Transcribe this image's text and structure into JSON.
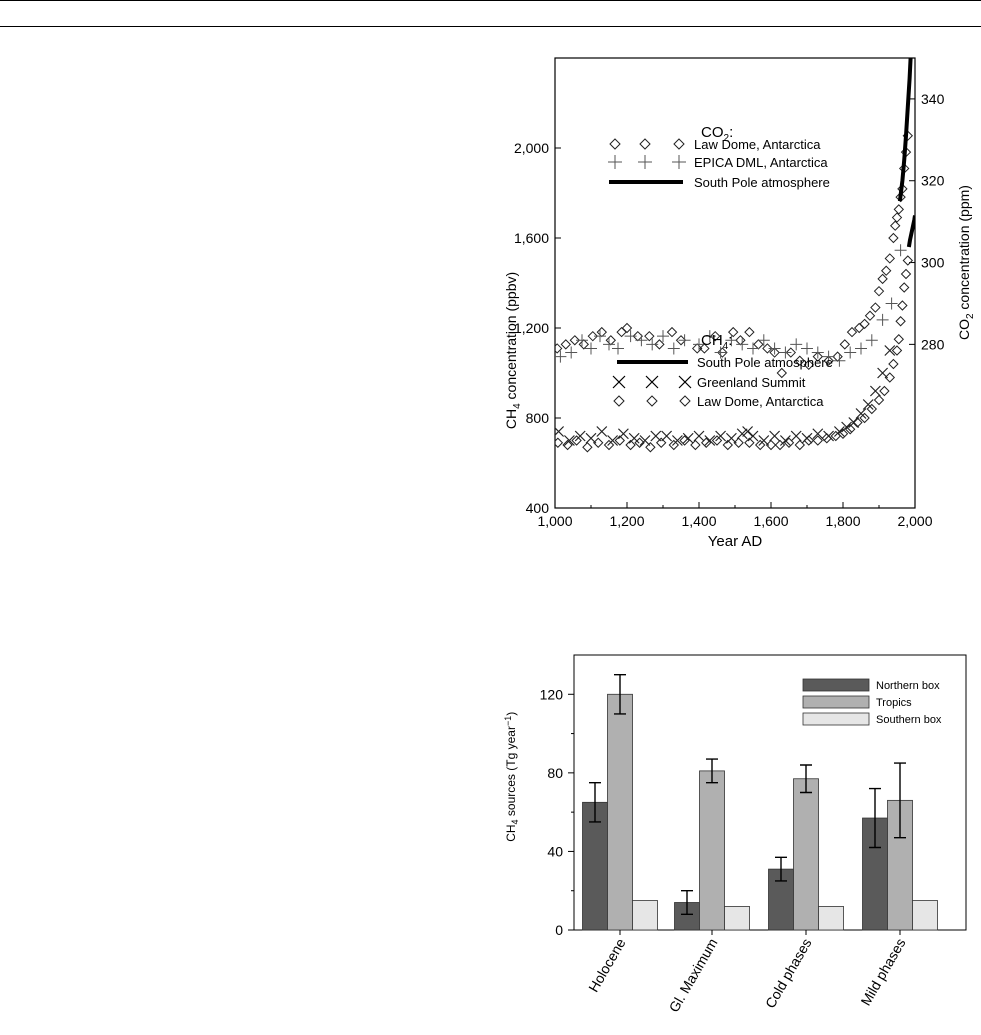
{
  "chart_data": [
    {
      "type": "scatter",
      "xlabel": "Year AD",
      "ylabel": "CH4 concentration (ppbv)",
      "ylabel_right": "CO2 concentration (ppm)",
      "xlim": [
        1000,
        2000
      ],
      "ylim": [
        400,
        2400
      ],
      "ylim_right": [
        240,
        350
      ],
      "x_ticks": [
        {
          "v": 1000,
          "label": "1,000"
        },
        {
          "v": 1200,
          "label": "1,200"
        },
        {
          "v": 1400,
          "label": "1,400"
        },
        {
          "v": 1600,
          "label": "1,600"
        },
        {
          "v": 1800,
          "label": "1,800"
        },
        {
          "v": 2000,
          "label": "2,000"
        }
      ],
      "y_ticks": [
        {
          "v": 400,
          "label": "400"
        },
        {
          "v": 800,
          "label": "800"
        },
        {
          "v": 1200,
          "label": "1,200"
        },
        {
          "v": 1600,
          "label": "1,600"
        },
        {
          "v": 2000,
          "label": "2,000"
        }
      ],
      "y2_ticks": [
        {
          "v": 280,
          "label": "280"
        },
        {
          "v": 300,
          "label": "300"
        },
        {
          "v": 320,
          "label": "320"
        },
        {
          "v": 340,
          "label": "340"
        }
      ],
      "co2_group": {
        "title": "CO",
        "title_sub": "2",
        "title_tail": ":",
        "series": [
          {
            "name": "Law Dome, Antarctica",
            "marker": "diamond",
            "x": [
              1006,
              1030,
              1055,
              1080,
              1105,
              1130,
              1155,
              1185,
              1200,
              1230,
              1262,
              1290,
              1325,
              1350,
              1395,
              1415,
              1445,
              1465,
              1495,
              1515,
              1540,
              1565,
              1590,
              1610,
              1630,
              1655,
              1680,
              1705,
              1730,
              1760,
              1785,
              1805,
              1825,
              1845,
              1860,
              1875,
              1890,
              1900,
              1910,
              1920,
              1930,
              1940,
              1945,
              1950,
              1955,
              1960,
              1965,
              1970,
              1975,
              1980
            ],
            "y": [
              279,
              280,
              281,
              280,
              282,
              283,
              281,
              283,
              284,
              282,
              282,
              280,
              283,
              281,
              279,
              279,
              282,
              278,
              283,
              281,
              283,
              280,
              279,
              278,
              273,
              278,
              276,
              275,
              277,
              276,
              277,
              280,
              283,
              284,
              285,
              287,
              289,
              293,
              296,
              298,
              301,
              306,
              309,
              311,
              313,
              316,
              318,
              323,
              327,
              331
            ]
          },
          {
            "name": "EPICA DML, Antarctica",
            "marker": "plus",
            "x": [
              1015,
              1045,
              1075,
              1100,
              1125,
              1150,
              1175,
              1210,
              1240,
              1270,
              1300,
              1330,
              1360,
              1400,
              1430,
              1460,
              1490,
              1520,
              1550,
              1580,
              1610,
              1640,
              1670,
              1700,
              1730,
              1760,
              1790,
              1820,
              1850,
              1880,
              1910,
              1935,
              1960
            ],
            "y": [
              277,
              278,
              281,
              279,
              282,
              280,
              279,
              282,
              281,
              280,
              282,
              279,
              281,
              280,
              282,
              278,
              281,
              280,
              279,
              281,
              279,
              278,
              280,
              279,
              278,
              277,
              276,
              278,
              279,
              281,
              286,
              290,
              303
            ]
          },
          {
            "name": "South Pole atmosphere",
            "marker": "line",
            "x": [
              1958,
              1965,
              1970,
              1975,
              1980,
              1985,
              1990,
              1995,
              2000
            ],
            "y": [
              315,
              320,
              325,
              331,
              338,
              345,
              354,
              360,
              369
            ]
          }
        ]
      },
      "ch4_group": {
        "title": "CH",
        "title_sub": "4",
        "title_tail": ":",
        "series": [
          {
            "name": "South Pole atmosphere",
            "marker": "line",
            "x": [
              1983,
              1986,
              1990,
              1994,
              1998,
              2000
            ],
            "y": [
              1560,
              1590,
              1620,
              1650,
              1680,
              1700
            ]
          },
          {
            "name": "Greenland Summit",
            "marker": "cross",
            "x": [
              1010,
              1040,
              1070,
              1100,
              1130,
              1160,
              1190,
              1220,
              1250,
              1280,
              1310,
              1340,
              1370,
              1400,
              1430,
              1460,
              1490,
              1520,
              1535,
              1550,
              1580,
              1610,
              1640,
              1670,
              1700,
              1730,
              1760,
              1790,
              1810,
              1830,
              1850,
              1870,
              1890,
              1910,
              1930
            ],
            "y": [
              740,
              700,
              720,
              710,
              740,
              700,
              730,
              710,
              700,
              720,
              720,
              700,
              710,
              720,
              700,
              720,
              710,
              730,
              740,
              720,
              700,
              720,
              700,
              720,
              710,
              730,
              720,
              740,
              760,
              780,
              820,
              860,
              920,
              1000,
              1100
            ]
          },
          {
            "name": "Law Dome, Antarctica",
            "marker": "diamond",
            "x": [
              1008,
              1035,
              1060,
              1090,
              1120,
              1150,
              1180,
              1210,
              1235,
              1265,
              1295,
              1330,
              1360,
              1390,
              1420,
              1450,
              1480,
              1510,
              1540,
              1570,
              1600,
              1625,
              1650,
              1680,
              1705,
              1730,
              1755,
              1780,
              1800,
              1820,
              1840,
              1860,
              1880,
              1900,
              1915,
              1930,
              1940,
              1950,
              1955,
              1960,
              1965,
              1970,
              1975,
              1980
            ],
            "y": [
              690,
              680,
              700,
              670,
              690,
              680,
              700,
              680,
              690,
              670,
              690,
              680,
              700,
              680,
              690,
              700,
              680,
              690,
              690,
              680,
              680,
              680,
              690,
              680,
              700,
              700,
              710,
              720,
              730,
              750,
              780,
              800,
              840,
              880,
              920,
              980,
              1040,
              1100,
              1150,
              1230,
              1300,
              1380,
              1440,
              1500
            ]
          }
        ]
      }
    },
    {
      "type": "bar",
      "ylabel": "CH4 sources (Tg year−1)",
      "ylim": [
        0,
        140
      ],
      "y_ticks": [
        0,
        40,
        80,
        120
      ],
      "categories": [
        "Holocene",
        "Gl. Maximum",
        "Cold phases",
        "Mild phases"
      ],
      "series": [
        {
          "name": "Northern box",
          "color": "#5a5a5a",
          "values": [
            65,
            14,
            31,
            57
          ],
          "errors": [
            10,
            6,
            6,
            15
          ]
        },
        {
          "name": "Tropics",
          "color": "#b0b0b0",
          "values": [
            120,
            81,
            77,
            66
          ],
          "errors": [
            10,
            6,
            7,
            19
          ]
        },
        {
          "name": "Southern box",
          "color": "#e6e6e6",
          "values": [
            15,
            12,
            12,
            15
          ],
          "errors": [
            0,
            0,
            0,
            0
          ]
        }
      ]
    }
  ]
}
